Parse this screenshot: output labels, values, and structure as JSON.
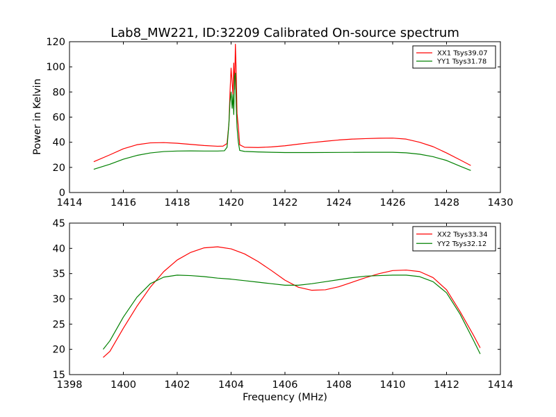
{
  "chart_data": [
    {
      "type": "line",
      "title": "Lab8_MW221, ID:32209 Calibrated On-source spectrum",
      "xlabel": "",
      "ylabel": "Power in Kelvin",
      "xlim": [
        1414,
        1430
      ],
      "ylim": [
        0,
        120
      ],
      "xticks": [
        1414,
        1416,
        1418,
        1420,
        1422,
        1424,
        1426,
        1428,
        1430
      ],
      "yticks": [
        0,
        20,
        40,
        60,
        80,
        100,
        120
      ],
      "grid": false,
      "legend_position": "top-right",
      "series": [
        {
          "name": "XX1 Tsys39.07",
          "color": "#ff0000",
          "points": [
            [
              1414.9,
              24.5
            ],
            [
              1415.5,
              30
            ],
            [
              1416,
              34.8
            ],
            [
              1416.5,
              38
            ],
            [
              1417,
              39.5
            ],
            [
              1417.5,
              39.7
            ],
            [
              1418,
              39.2
            ],
            [
              1418.5,
              38.3
            ],
            [
              1419,
              37.4
            ],
            [
              1419.5,
              36.8
            ],
            [
              1419.7,
              36.9
            ],
            [
              1419.85,
              39
            ],
            [
              1419.92,
              55
            ],
            [
              1419.96,
              80
            ],
            [
              1420.0,
              99
            ],
            [
              1420.04,
              87
            ],
            [
              1420.07,
              78
            ],
            [
              1420.1,
              103
            ],
            [
              1420.13,
              82
            ],
            [
              1420.16,
              118
            ],
            [
              1420.19,
              96
            ],
            [
              1420.22,
              63
            ],
            [
              1420.27,
              52
            ],
            [
              1420.32,
              38
            ],
            [
              1420.5,
              36
            ],
            [
              1421,
              35.8
            ],
            [
              1421.5,
              36.3
            ],
            [
              1422,
              37.2
            ],
            [
              1422.5,
              38.5
            ],
            [
              1423,
              39.7
            ],
            [
              1423.5,
              40.8
            ],
            [
              1424,
              41.8
            ],
            [
              1424.5,
              42.5
            ],
            [
              1425,
              42.9
            ],
            [
              1425.5,
              43.2
            ],
            [
              1426,
              43.3
            ],
            [
              1426.5,
              42.5
            ],
            [
              1427,
              40
            ],
            [
              1427.5,
              36.5
            ],
            [
              1428,
              31.5
            ],
            [
              1428.5,
              26
            ],
            [
              1428.9,
              21.5
            ]
          ]
        },
        {
          "name": "YY1 Tsys31.78",
          "color": "#008000",
          "points": [
            [
              1414.9,
              18.5
            ],
            [
              1415.5,
              22.5
            ],
            [
              1416,
              26.5
            ],
            [
              1416.5,
              29.5
            ],
            [
              1417,
              31.5
            ],
            [
              1417.5,
              32.6
            ],
            [
              1418,
              33
            ],
            [
              1418.5,
              33.1
            ],
            [
              1419,
              33
            ],
            [
              1419.5,
              33
            ],
            [
              1419.75,
              33.2
            ],
            [
              1419.85,
              36
            ],
            [
              1419.92,
              55
            ],
            [
              1419.96,
              72
            ],
            [
              1420.0,
              80
            ],
            [
              1420.04,
              67
            ],
            [
              1420.07,
              78
            ],
            [
              1420.1,
              62
            ],
            [
              1420.13,
              92
            ],
            [
              1420.16,
              95
            ],
            [
              1420.19,
              70
            ],
            [
              1420.22,
              52
            ],
            [
              1420.27,
              40
            ],
            [
              1420.32,
              33.5
            ],
            [
              1420.5,
              32.7
            ],
            [
              1421,
              32.3
            ],
            [
              1421.5,
              32
            ],
            [
              1422,
              31.8
            ],
            [
              1423,
              31.8
            ],
            [
              1424,
              31.9
            ],
            [
              1425,
              32
            ],
            [
              1426,
              32
            ],
            [
              1426.5,
              31.6
            ],
            [
              1427,
              30.5
            ],
            [
              1427.5,
              28.5
            ],
            [
              1428,
              25.5
            ],
            [
              1428.5,
              21
            ],
            [
              1428.9,
              17.5
            ]
          ]
        }
      ]
    },
    {
      "type": "line",
      "title": "",
      "xlabel": "Frequency (MHz)",
      "ylabel": "",
      "xlim": [
        1398,
        1414
      ],
      "ylim": [
        15,
        45
      ],
      "xticks": [
        1398,
        1400,
        1402,
        1404,
        1406,
        1408,
        1410,
        1412,
        1414
      ],
      "yticks": [
        15,
        20,
        25,
        30,
        35,
        40,
        45
      ],
      "grid": false,
      "legend_position": "top-right",
      "series": [
        {
          "name": "XX2 Tsys33.34",
          "color": "#ff0000",
          "points": [
            [
              1399.25,
              18.4
            ],
            [
              1399.5,
              19.6
            ],
            [
              1400,
              24.2
            ],
            [
              1400.5,
              28.5
            ],
            [
              1401,
              32.3
            ],
            [
              1401.5,
              35.4
            ],
            [
              1402,
              37.7
            ],
            [
              1402.5,
              39.2
            ],
            [
              1403,
              40.1
            ],
            [
              1403.5,
              40.3
            ],
            [
              1404,
              39.9
            ],
            [
              1404.5,
              38.9
            ],
            [
              1405,
              37.4
            ],
            [
              1405.5,
              35.6
            ],
            [
              1406,
              33.7
            ],
            [
              1406.5,
              32.3
            ],
            [
              1407,
              31.7
            ],
            [
              1407.5,
              31.8
            ],
            [
              1408,
              32.4
            ],
            [
              1408.5,
              33.3
            ],
            [
              1409,
              34.2
            ],
            [
              1409.5,
              35
            ],
            [
              1410,
              35.6
            ],
            [
              1410.5,
              35.7
            ],
            [
              1411,
              35.4
            ],
            [
              1411.5,
              34.2
            ],
            [
              1412,
              31.8
            ],
            [
              1412.5,
              27.5
            ],
            [
              1413,
              22.8
            ],
            [
              1413.25,
              20.3
            ]
          ]
        },
        {
          "name": "YY2 Tsys32.12",
          "color": "#008000",
          "points": [
            [
              1399.25,
              20
            ],
            [
              1399.5,
              21.7
            ],
            [
              1400,
              26.4
            ],
            [
              1400.5,
              30.3
            ],
            [
              1401,
              33
            ],
            [
              1401.5,
              34.3
            ],
            [
              1402,
              34.7
            ],
            [
              1402.5,
              34.6
            ],
            [
              1403,
              34.4
            ],
            [
              1403.5,
              34.1
            ],
            [
              1404,
              33.9
            ],
            [
              1404.5,
              33.6
            ],
            [
              1405,
              33.3
            ],
            [
              1405.5,
              33
            ],
            [
              1406,
              32.7
            ],
            [
              1406.5,
              32.7
            ],
            [
              1407,
              33
            ],
            [
              1407.5,
              33.4
            ],
            [
              1408,
              33.8
            ],
            [
              1408.5,
              34.2
            ],
            [
              1409,
              34.5
            ],
            [
              1409.5,
              34.6
            ],
            [
              1410,
              34.7
            ],
            [
              1410.5,
              34.7
            ],
            [
              1411,
              34.4
            ],
            [
              1411.5,
              33.4
            ],
            [
              1412,
              31.2
            ],
            [
              1412.5,
              27
            ],
            [
              1413,
              21.8
            ],
            [
              1413.25,
              19.1
            ]
          ]
        }
      ]
    }
  ]
}
